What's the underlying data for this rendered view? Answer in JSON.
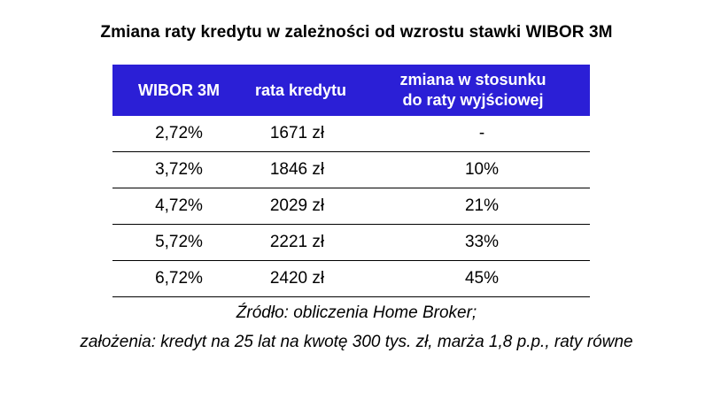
{
  "title": "Zmiana raty kredytu w zależności od wzrostu stawki WIBOR 3M",
  "table": {
    "headers": {
      "wibor": "WIBOR 3M",
      "rate": "rata kredytu",
      "change_line1": "zmiana w stosunku",
      "change_line2": "do raty wyjściowej"
    },
    "rows": [
      {
        "wibor": "2,72%",
        "rate": "1671 zł",
        "change": "-"
      },
      {
        "wibor": "3,72%",
        "rate": "1846 zł",
        "change": "10%"
      },
      {
        "wibor": "4,72%",
        "rate": "2029 zł",
        "change": "21%"
      },
      {
        "wibor": "5,72%",
        "rate": "2221 zł",
        "change": "33%"
      },
      {
        "wibor": "6,72%",
        "rate": "2420 zł",
        "change": "45%"
      }
    ]
  },
  "source": "Źródło: obliczenia Home Broker;",
  "assumptions": "założenia: kredyt na 25 lat na kwotę 300 tys. zł, marża 1,8 p.p., raty równe",
  "colors": {
    "header_background": "#2b1fd6",
    "header_text": "#ffffff",
    "row_divider": "#000000"
  }
}
